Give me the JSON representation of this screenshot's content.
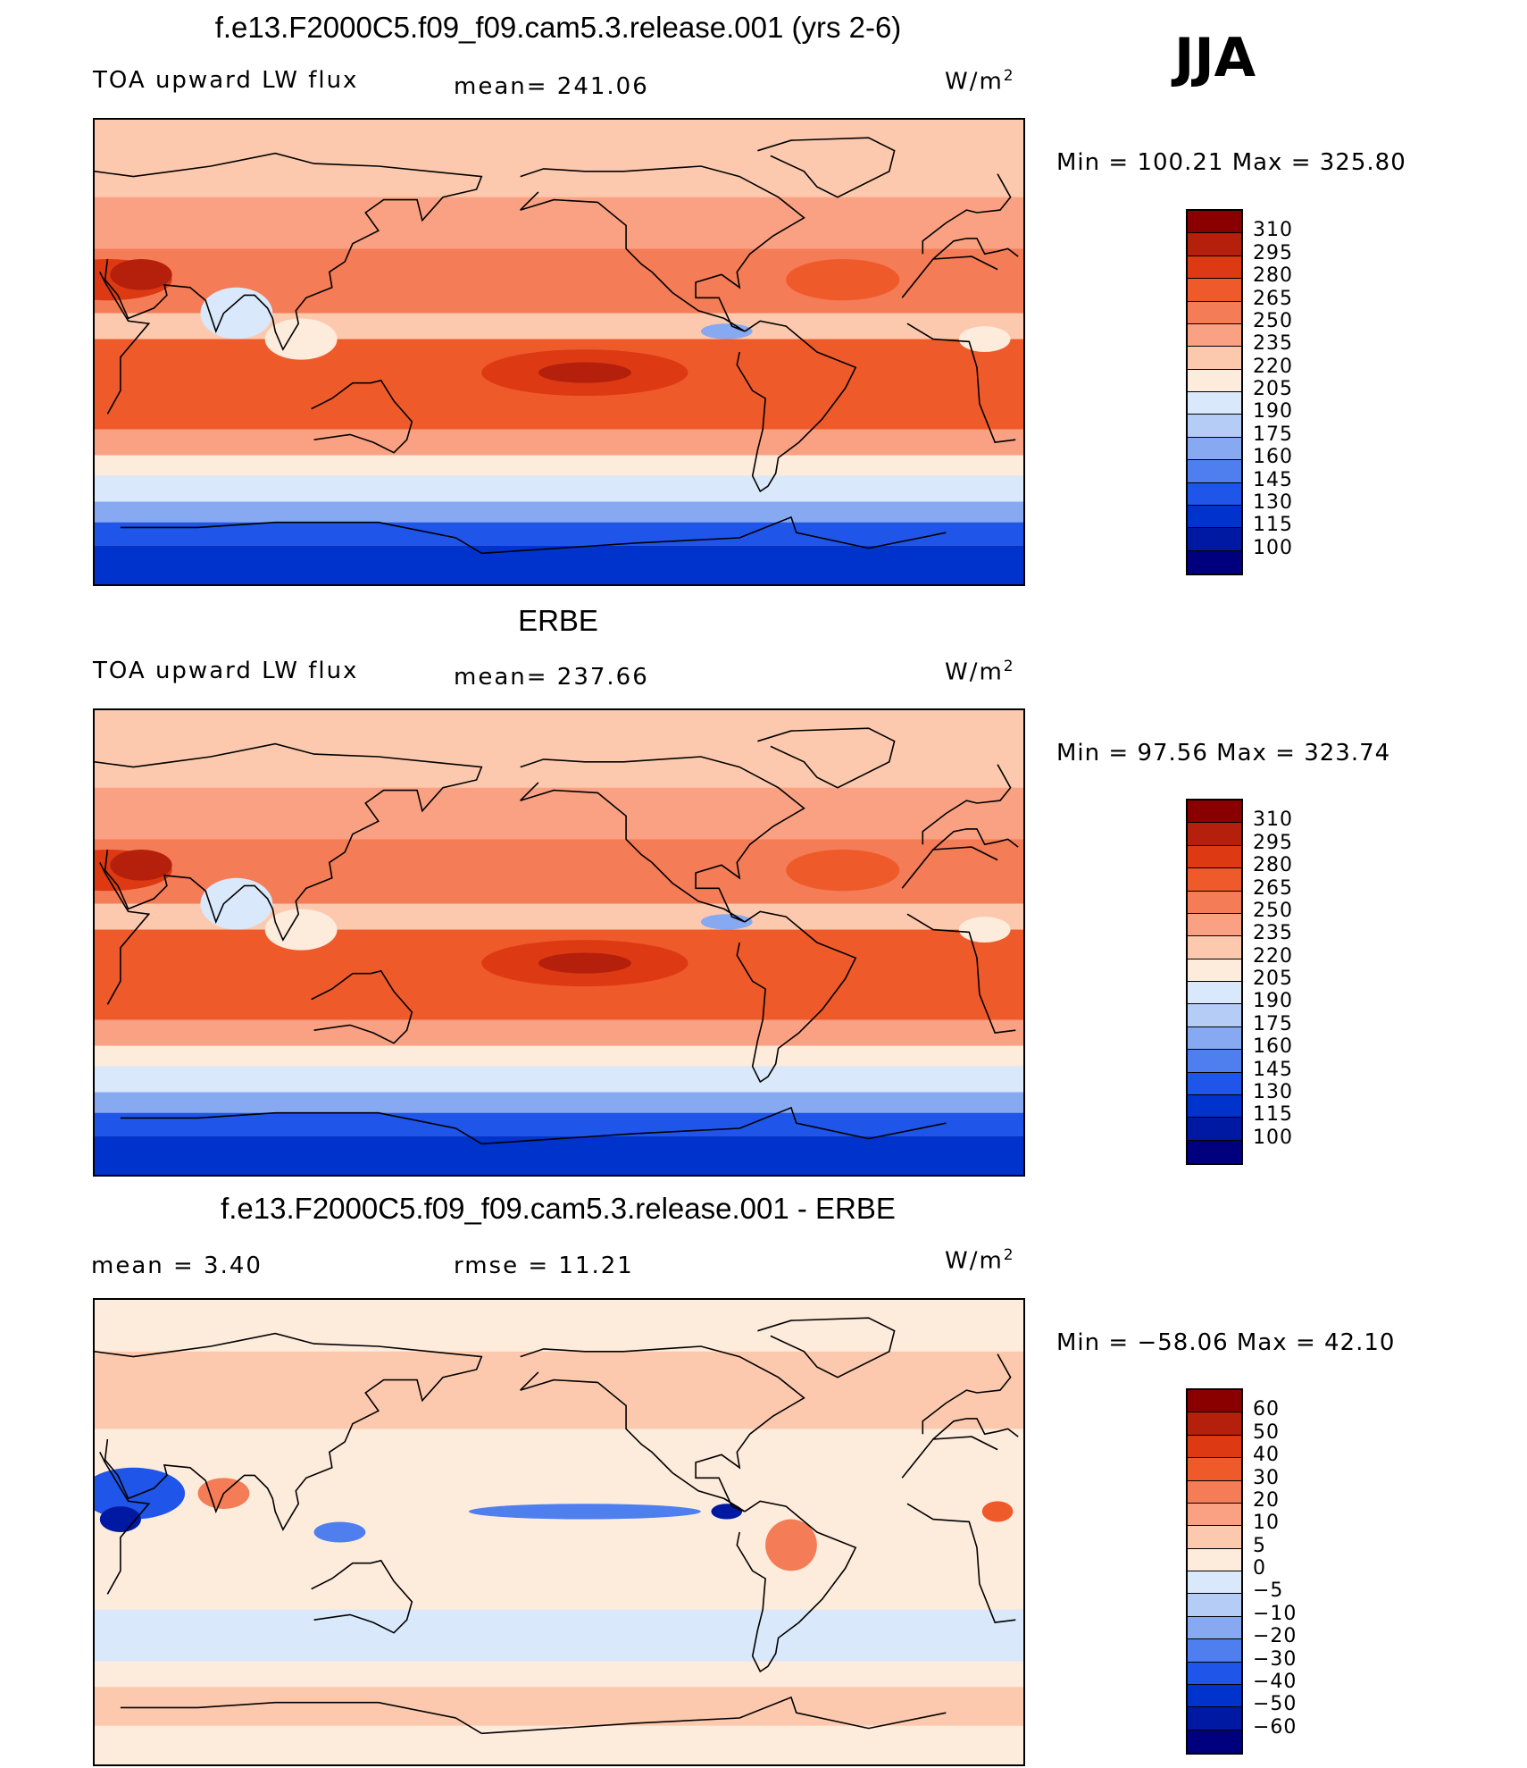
{
  "season": "JJA",
  "units_sup": "2",
  "panels": [
    {
      "title": "f.e13.F2000C5.f09_f09.cam5.3.release.001 (yrs 2-6)",
      "left_label": "TOA upward LW flux",
      "mid_label": "mean= 241.06",
      "units": "W/m",
      "minmax": "Min = 100.21 Max = 325.80",
      "colorbar_ticks": [
        "310",
        "295",
        "280",
        "265",
        "250",
        "235",
        "220",
        "205",
        "190",
        "175",
        "160",
        "145",
        "130",
        "115",
        "100"
      ]
    },
    {
      "title": "ERBE",
      "left_label": "TOA upward LW flux",
      "mid_label": "mean= 237.66",
      "units": "W/m",
      "minmax": "Min =  97.56 Max = 323.74",
      "colorbar_ticks": [
        "310",
        "295",
        "280",
        "265",
        "250",
        "235",
        "220",
        "205",
        "190",
        "175",
        "160",
        "145",
        "130",
        "115",
        "100"
      ]
    },
    {
      "title": "f.e13.F2000C5.f09_f09.cam5.3.release.001 - ERBE",
      "left_label": "mean =    3.40",
      "mid_label": "rmse =   11.21",
      "units": "W/m",
      "minmax": "Min = −58.06 Max =  42.10",
      "colorbar_ticks": [
        "60",
        "50",
        "40",
        "30",
        "20",
        "10",
        "5",
        "0",
        "−5",
        "−10",
        "−20",
        "−30",
        "−40",
        "−50",
        "−60"
      ]
    }
  ],
  "chart_data": [
    {
      "type": "heatmap",
      "title": "f.e13.F2000C5.f09_f09.cam5.3.release.001 (yrs 2-6)",
      "variable": "TOA upward LW flux",
      "mean": 241.06,
      "min": 100.21,
      "max": 325.8,
      "units": "W/m2",
      "levels": [
        100,
        115,
        130,
        145,
        160,
        175,
        190,
        205,
        220,
        235,
        250,
        265,
        280,
        295,
        310
      ],
      "colors": [
        "#00007f",
        "#0019a3",
        "#0033cc",
        "#1f55e8",
        "#4f7fef",
        "#86a9f2",
        "#b5ccf6",
        "#d9e8fa",
        "#fdebdc",
        "#fcc9ae",
        "#f9a182",
        "#f47c56",
        "#ef5a2b",
        "#dd3a14",
        "#b4200b",
        "#8a0000"
      ]
    },
    {
      "type": "heatmap",
      "title": "ERBE",
      "variable": "TOA upward LW flux",
      "mean": 237.66,
      "min": 97.56,
      "max": 323.74,
      "units": "W/m2",
      "levels": [
        100,
        115,
        130,
        145,
        160,
        175,
        190,
        205,
        220,
        235,
        250,
        265,
        280,
        295,
        310
      ],
      "colors": [
        "#00007f",
        "#0019a3",
        "#0033cc",
        "#1f55e8",
        "#4f7fef",
        "#86a9f2",
        "#b5ccf6",
        "#d9e8fa",
        "#fdebdc",
        "#fcc9ae",
        "#f9a182",
        "#f47c56",
        "#ef5a2b",
        "#dd3a14",
        "#b4200b",
        "#8a0000"
      ]
    },
    {
      "type": "heatmap",
      "title": "f.e13.F2000C5.f09_f09.cam5.3.release.001 - ERBE",
      "mean": 3.4,
      "rmse": 11.21,
      "min": -58.06,
      "max": 42.1,
      "units": "W/m2",
      "levels": [
        -60,
        -50,
        -40,
        -30,
        -20,
        -10,
        -5,
        0,
        5,
        10,
        20,
        30,
        40,
        50,
        60
      ],
      "colors": [
        "#00007f",
        "#0019a3",
        "#0033cc",
        "#1f55e8",
        "#4f7fef",
        "#86a9f2",
        "#b5ccf6",
        "#d9e8fa",
        "#fdebdc",
        "#fcc9ae",
        "#f9a182",
        "#f47c56",
        "#ef5a2b",
        "#dd3a14",
        "#b4200b",
        "#8a0000"
      ]
    }
  ]
}
